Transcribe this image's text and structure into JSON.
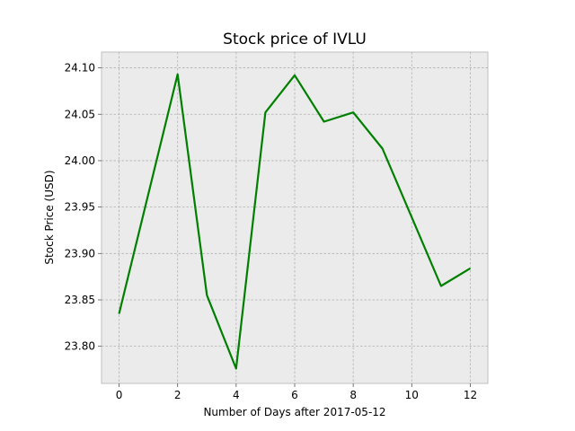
{
  "chart_data": {
    "type": "line",
    "title": "Stock price of IVLU",
    "xlabel": "Number of Days after 2017-05-12",
    "ylabel": "Stock Price (USD)",
    "xlim": [
      -0.6,
      12.6
    ],
    "ylim": [
      23.76,
      24.117
    ],
    "xticks": [
      0,
      2,
      4,
      6,
      8,
      10,
      12
    ],
    "xtick_labels": [
      "0",
      "2",
      "4",
      "6",
      "8",
      "10",
      "12"
    ],
    "yticks": [
      23.8,
      23.85,
      23.9,
      23.95,
      24.0,
      24.05,
      24.1
    ],
    "ytick_labels": [
      "23.80",
      "23.85",
      "23.90",
      "23.95",
      "24.00",
      "24.05",
      "24.10"
    ],
    "grid": true,
    "series": [
      {
        "color": "#008000",
        "x": [
          0,
          2,
          3,
          4,
          5,
          6,
          7,
          8,
          9,
          11,
          12
        ],
        "y": [
          23.835,
          24.093,
          23.855,
          23.776,
          24.052,
          24.092,
          24.042,
          24.052,
          24.013,
          23.865,
          23.884
        ]
      }
    ]
  }
}
